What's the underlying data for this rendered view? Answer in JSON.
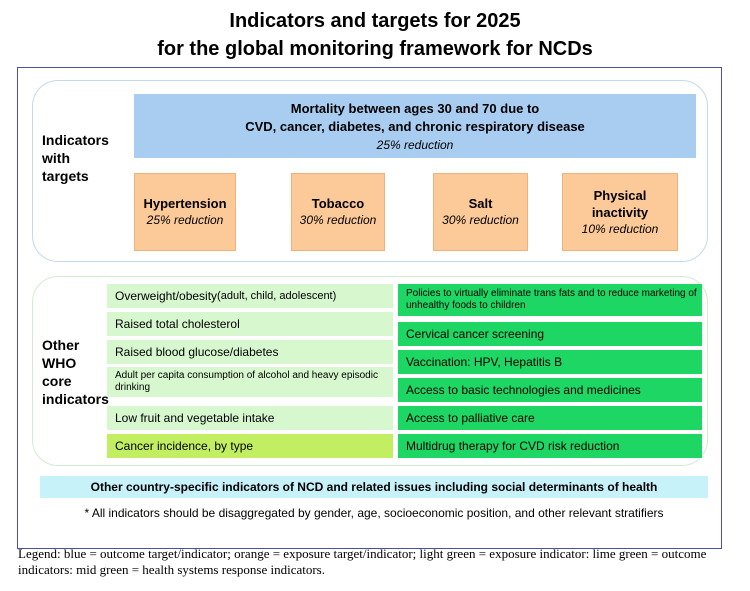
{
  "title": {
    "line1": "Indicators and targets for 2025",
    "line2": "for the global monitoring framework for NCDs"
  },
  "targets_section": {
    "label": [
      "Indicators",
      "with",
      "targets"
    ],
    "mortality": {
      "line1": "Mortality between ages 30 and 70 due to",
      "line2": "CVD, cancer, diabetes, and chronic respiratory disease",
      "reduction": "25% reduction"
    },
    "exposure_targets": [
      {
        "name": "Hypertension",
        "name2": "",
        "reduction": "25% reduction"
      },
      {
        "name": "Tobacco",
        "name2": "",
        "reduction": "30% reduction"
      },
      {
        "name": "Salt",
        "name2": "",
        "reduction": "30% reduction"
      },
      {
        "name": "Physical",
        "name2": "inactivity",
        "reduction": "10% reduction"
      }
    ]
  },
  "core_section": {
    "label": [
      "Other",
      "WHO",
      "core",
      "indicators"
    ],
    "left_items": [
      {
        "text": "Overweight/obesity",
        "sub": " (adult, child, adolescent)"
      },
      {
        "text": "Raised total cholesterol",
        "sub": ""
      },
      {
        "text": "Raised blood glucose/diabetes",
        "sub": ""
      },
      {
        "text": "Adult per capita consumption of alcohol and heavy episodic drinking",
        "sub": ""
      },
      {
        "text": "Low fruit and vegetable intake",
        "sub": ""
      },
      {
        "text": "Cancer incidence, by type",
        "sub": ""
      }
    ],
    "right_items": [
      "Policies to virtually eliminate trans fats and to reduce marketing of unhealthy foods to children",
      "Cervical cancer screening",
      "Vaccination: HPV, Hepatitis B",
      "Access to basic technologies and medicines",
      "Access to palliative care",
      "Multidrug therapy for CVD risk reduction"
    ]
  },
  "other_indicators": "Other country-specific indicators of NCD and related issues including social determinants of health",
  "note": "* All indicators should be disaggregated by gender, age, socioeconomic position, and other relevant stratifiers",
  "legend": "Legend: blue = outcome target/indicator; orange = exposure target/indicator; light green = exposure indicator: lime green = outcome indicators: mid green = health systems response indicators.",
  "colors": {
    "blue": "#a9cdf1",
    "orange": "#fcc999",
    "light_green": "#d7f7cf",
    "lime_green": "#c2ef62",
    "mid_green": "#1ed664",
    "cyan": "#c8f2fa",
    "frame": "#4b4f9c"
  }
}
